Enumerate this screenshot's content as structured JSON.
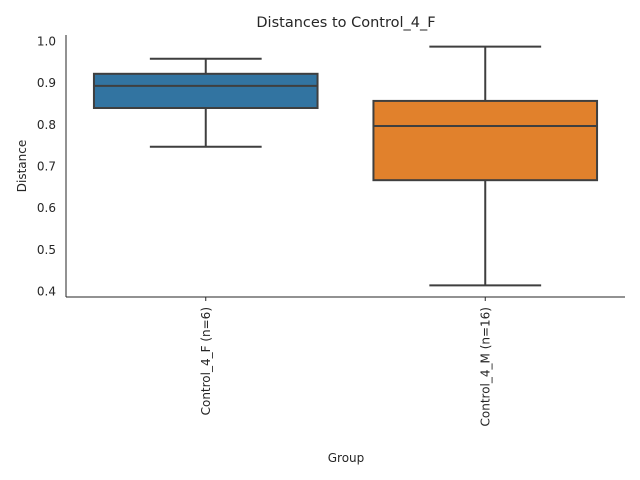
{
  "chart_data": {
    "type": "box",
    "title": "Distances to Control_4_F",
    "xlabel": "Group",
    "ylabel": "Distance",
    "ylim": [
      0.386,
      1.014
    ],
    "yticks": [
      "0.4",
      "0.5",
      "0.6",
      "0.7",
      "0.8",
      "0.9",
      "1.0"
    ],
    "ytick_values": [
      0.4,
      0.5,
      0.6,
      0.7,
      0.8,
      0.9,
      1.0
    ],
    "categories": [
      "Control_4_F (n=6)",
      "Control_4_M (n=16)"
    ],
    "series": [
      {
        "name": "Control_4_F (n=6)",
        "whisker_low": 0.746,
        "q1": 0.839,
        "median": 0.892,
        "q3": 0.921,
        "whisker_high": 0.957,
        "color": "#3274a1"
      },
      {
        "name": "Control_4_M (n=16)",
        "whisker_low": 0.414,
        "q1": 0.666,
        "median": 0.796,
        "q3": 0.856,
        "whisker_high": 0.986,
        "color": "#e1812c"
      }
    ],
    "grid": false
  }
}
